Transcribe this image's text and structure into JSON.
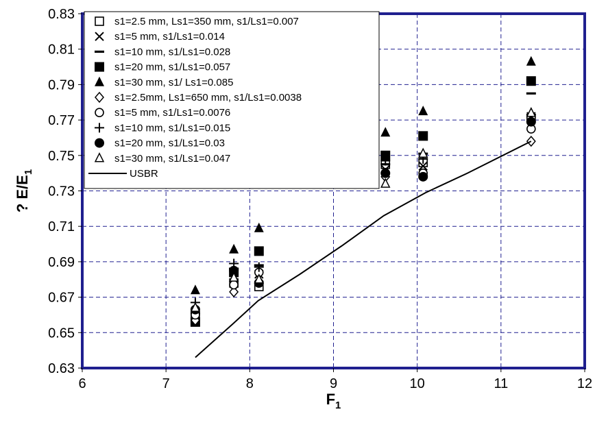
{
  "chart_data": {
    "type": "scatter",
    "xlabel_main": "F",
    "xlabel_sub": "1",
    "ylabel_main": "? E/E",
    "ylabel_sub": "1",
    "xlim": [
      6,
      12
    ],
    "ylim": [
      0.63,
      0.83
    ],
    "x_ticks": [
      "6",
      "7",
      "8",
      "9",
      "10",
      "11",
      "12"
    ],
    "y_ticks": [
      "0.63",
      "0.65",
      "0.67",
      "0.69",
      "0.71",
      "0.73",
      "0.75",
      "0.77",
      "0.79",
      "0.81",
      "0.83"
    ],
    "grid": true,
    "legend_position": "top-left",
    "colors": {
      "frame": "#1f1f8f",
      "grid": "#1f1f8f",
      "marks": "#000000"
    },
    "series": [
      {
        "name": "s1=2.5 mm, Ls1=350 mm, s1/Ls1=0.007",
        "marker": "square-open",
        "points": [
          [
            7.35,
            0.659
          ],
          [
            7.81,
            0.678
          ],
          [
            8.11,
            0.676
          ],
          [
            9.62,
            0.745
          ],
          [
            10.07,
            0.746
          ],
          [
            11.36,
            0.771
          ]
        ]
      },
      {
        "name": "s1=5 mm, s1/Ls1=0.014",
        "marker": "x",
        "points": [
          [
            7.35,
            0.662
          ],
          [
            7.81,
            0.682
          ],
          [
            8.11,
            0.683
          ],
          [
            9.62,
            0.742
          ],
          [
            10.07,
            0.744
          ],
          [
            11.36,
            0.772
          ]
        ]
      },
      {
        "name": "s1=10 mm, s1/Ls1=0.028",
        "marker": "dash",
        "points": [
          [
            7.35,
            0.661
          ],
          [
            7.81,
            0.686
          ],
          [
            8.11,
            0.688
          ],
          [
            9.62,
            0.745
          ],
          [
            10.07,
            0.751
          ],
          [
            11.36,
            0.785
          ]
        ]
      },
      {
        "name": "s1=20 mm, s1/Ls1=0.057",
        "marker": "square-filled",
        "points": [
          [
            7.35,
            0.656
          ],
          [
            7.81,
            0.684
          ],
          [
            8.11,
            0.696
          ],
          [
            9.62,
            0.75
          ],
          [
            10.07,
            0.761
          ],
          [
            11.36,
            0.792
          ]
        ]
      },
      {
        "name": "s1=30 mm, s1/ Ls1=0.085",
        "marker": "triangle-filled",
        "points": [
          [
            7.35,
            0.674
          ],
          [
            7.81,
            0.697
          ],
          [
            8.11,
            0.709
          ],
          [
            9.62,
            0.763
          ],
          [
            10.07,
            0.775
          ],
          [
            11.36,
            0.803
          ]
        ]
      },
      {
        "name": "s1=2.5mm, Ls1=650 mm, s1/Ls1=0.0038",
        "marker": "diamond-open",
        "points": [
          [
            7.35,
            0.657
          ],
          [
            7.81,
            0.673
          ],
          [
            8.11,
            0.679
          ],
          [
            9.62,
            0.738
          ],
          [
            10.07,
            0.739
          ],
          [
            11.36,
            0.758
          ]
        ]
      },
      {
        "name": "s1=5 mm, s1/Ls1=0.0076",
        "marker": "circle-open",
        "points": [
          [
            7.35,
            0.66
          ],
          [
            7.81,
            0.677
          ],
          [
            8.11,
            0.684
          ],
          [
            9.62,
            0.74
          ],
          [
            10.07,
            0.74
          ],
          [
            11.36,
            0.765
          ]
        ]
      },
      {
        "name": "s1=10 mm, s1/Ls1=0.015",
        "marker": "plus",
        "points": [
          [
            7.35,
            0.667
          ],
          [
            7.81,
            0.689
          ],
          [
            8.11,
            0.687
          ],
          [
            9.62,
            0.747
          ],
          [
            10.07,
            0.748
          ],
          [
            11.36,
            0.773
          ]
        ]
      },
      {
        "name": "s1=20 mm, s1/Ls1=0.03",
        "marker": "circle-filled",
        "points": [
          [
            7.35,
            0.663
          ],
          [
            7.81,
            0.685
          ],
          [
            8.11,
            0.678
          ],
          [
            9.62,
            0.74
          ],
          [
            10.07,
            0.738
          ],
          [
            11.36,
            0.769
          ]
        ]
      },
      {
        "name": "s1=30 mm, s1/Ls1=0.047",
        "marker": "triangle-open",
        "points": [
          [
            7.35,
            0.664
          ],
          [
            7.81,
            0.681
          ],
          [
            8.11,
            0.68
          ],
          [
            9.62,
            0.734
          ],
          [
            10.07,
            0.751
          ],
          [
            11.36,
            0.774
          ]
        ]
      },
      {
        "name": "USBR",
        "marker": "line",
        "points": [
          [
            7.35,
            0.636
          ],
          [
            7.8,
            0.655
          ],
          [
            8.1,
            0.668
          ],
          [
            8.6,
            0.683
          ],
          [
            9.1,
            0.699
          ],
          [
            9.6,
            0.716
          ],
          [
            10.1,
            0.729
          ],
          [
            10.6,
            0.74
          ],
          [
            11.36,
            0.758
          ]
        ]
      }
    ]
  }
}
